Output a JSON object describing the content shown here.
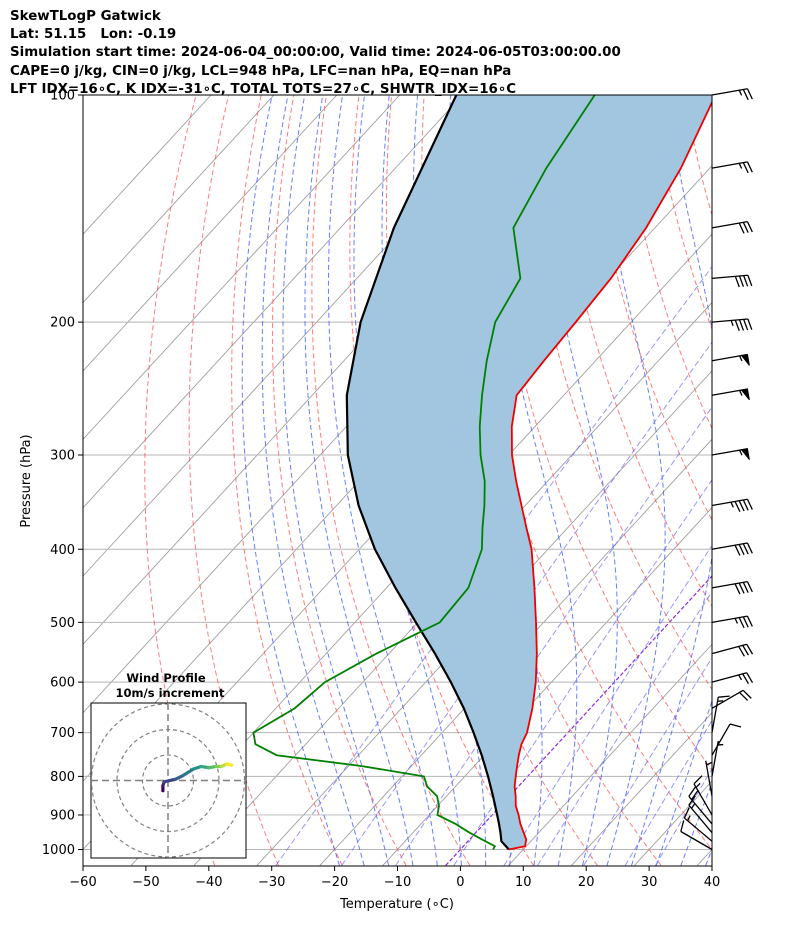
{
  "header": {
    "line1": "SkewTLogP Gatwick",
    "line2": "Lat: 51.15   Lon: -0.19",
    "line3": "Simulation start time: 2024-06-04_00:00:00, Valid time: 2024-06-05T03:00:00.00",
    "line4": "CAPE=0 j/kg, CIN=0 j/kg, LCL=948 hPa, LFC=nan hPa, EQ=nan hPa",
    "line5": "LFT IDX=16∘C, K IDX=-31∘C, TOTAL TOTS=27∘C, SHWTR_IDX=16∘C"
  },
  "chart_data": {
    "type": "skew-t",
    "xlabel": "Temperature (∘C)",
    "ylabel": "Pressure (hPa)",
    "xlim": [
      -60,
      40
    ],
    "ylim": [
      1050,
      100
    ],
    "y_scale": "log",
    "x_ticks": [
      -60,
      -50,
      -40,
      -30,
      -20,
      -10,
      0,
      10,
      20,
      30,
      40
    ],
    "x_tick_labels": [
      "−60",
      "−50",
      "−40",
      "−30",
      "−20",
      "−10",
      "0",
      "10",
      "20",
      "30",
      "40"
    ],
    "y_ticks": [
      1000,
      900,
      800,
      700,
      600,
      500,
      400,
      300,
      200,
      100
    ],
    "y_tick_labels": [
      "1000",
      "900",
      "800",
      "700",
      "600",
      "500",
      "400",
      "300",
      "200",
      "100"
    ],
    "grid": true,
    "colors": {
      "temperature": "#ee0000",
      "dewpoint": "#008000",
      "parcel": "#000000",
      "shade": "#a2c6df",
      "dry_adiabat": "#ff5050",
      "moist_adiabat": "#3355ff",
      "mixing_ratio": "#6a6aff",
      "isotherm": "#a0a0a0",
      "zero_isotherm": "#8a2be2"
    },
    "temperature": {
      "p": [
        1000,
        990,
        970,
        950,
        925,
        900,
        875,
        850,
        825,
        800,
        775,
        750,
        725,
        700,
        650,
        600,
        550,
        500,
        450,
        400,
        375,
        350,
        325,
        300,
        275,
        250,
        225,
        200,
        175,
        150,
        125,
        100
      ],
      "t": [
        7.7,
        9.8,
        9.0,
        7.6,
        5.8,
        4.2,
        2.4,
        1.0,
        -0.6,
        -1.9,
        -3.2,
        -4.5,
        -5.7,
        -6.5,
        -9.2,
        -12.5,
        -16.5,
        -21.2,
        -26.5,
        -32.6,
        -36.5,
        -40.6,
        -45.0,
        -49.5,
        -53.7,
        -57.5,
        -58.2,
        -58.8,
        -59.6,
        -61.4,
        -64.6,
        -69.8
      ]
    },
    "dewpoint": {
      "p": [
        1000,
        990,
        970,
        950,
        925,
        900,
        875,
        850,
        825,
        800,
        775,
        750,
        725,
        700,
        650,
        600,
        550,
        500,
        450,
        400,
        375,
        350,
        325,
        300,
        275,
        250,
        225,
        200,
        175,
        150,
        125,
        100
      ],
      "t": [
        5.2,
        5.0,
        2.0,
        -1.0,
        -4.5,
        -8.7,
        -9.8,
        -11.5,
        -14.5,
        -16.5,
        -28.0,
        -43.0,
        -48.0,
        -50.0,
        -47.0,
        -46.0,
        -42.0,
        -36.5,
        -37.0,
        -40.5,
        -43.5,
        -46.5,
        -50.0,
        -54.5,
        -58.8,
        -63.0,
        -67.3,
        -71.6,
        -74.0,
        -82.5,
        -86.0,
        -89.0
      ]
    },
    "parcel": {
      "p": [
        1000,
        975,
        948,
        925,
        900,
        850,
        800,
        750,
        700,
        650,
        600,
        550,
        500,
        450,
        400,
        350,
        300,
        250,
        200,
        150,
        100
      ],
      "t": [
        7.7,
        5.3,
        3.8,
        2.4,
        0.8,
        -2.6,
        -6.3,
        -10.4,
        -15.0,
        -20.1,
        -26.0,
        -32.7,
        -40.3,
        -48.6,
        -57.5,
        -66.5,
        -75.6,
        -84.5,
        -93.0,
        -101.5,
        -111.0
      ]
    },
    "wind_barbs": {
      "p": [
        1000,
        975,
        950,
        925,
        900,
        850,
        800,
        750,
        700,
        650,
        600,
        550,
        500,
        450,
        400,
        350,
        300,
        250,
        225,
        200,
        175,
        150,
        125,
        100
      ],
      "speed_kt": [
        10,
        15,
        15,
        20,
        15,
        5,
        5,
        10,
        15,
        20,
        25,
        30,
        35,
        40,
        40,
        45,
        55,
        55,
        55,
        45,
        40,
        30,
        25,
        25
      ],
      "direction_deg": [
        300,
        310,
        320,
        320,
        330,
        350,
        10,
        30,
        10,
        60,
        75,
        75,
        80,
        80,
        80,
        80,
        80,
        80,
        80,
        85,
        85,
        80,
        80,
        80
      ]
    },
    "hodograph": {
      "title": "Wind Profile",
      "subtitle": "10m/s increment",
      "ring_increment_ms": 10,
      "u_ms": [
        -2.0,
        -2.0,
        -1.5,
        3.0,
        6.0,
        10.0,
        13.0,
        16.0,
        19.0,
        21.0,
        23.0,
        25.0
      ],
      "v_ms": [
        -4.0,
        -2.0,
        -0.5,
        0.5,
        2.0,
        4.5,
        5.5,
        5.0,
        5.5,
        5.5,
        6.5,
        6.0
      ]
    }
  }
}
